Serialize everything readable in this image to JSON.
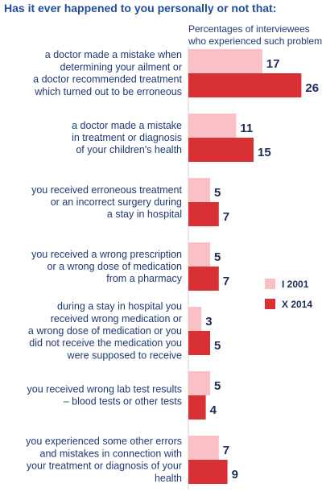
{
  "chart_data": {
    "type": "bar",
    "orientation": "horizontal",
    "title": "Has it ever happened to you personally or not that:",
    "subtitle": [
      "Percentages of interviewees",
      "who experienced such problems"
    ],
    "categories": [
      [
        "a doctor made a mistake when",
        "determining your ailment or",
        "a doctor recommended treatment",
        "which turned out to be erroneous"
      ],
      [
        "a doctor made a mistake",
        "in treatment or diagnosis",
        "of your children's health"
      ],
      [
        "you received erroneous treatment",
        "or an incorrect surgery during",
        "a stay in hospital"
      ],
      [
        "you received a wrong prescription",
        "or a wrong dose of medication",
        "from a pharmacy"
      ],
      [
        "during a stay in hospital you",
        "received wrong medication or",
        "a wrong dose of medication or you",
        "did not receive the medication you",
        "were supposed to receive"
      ],
      [
        "you received wrong lab test results",
        "– blood tests or other tests"
      ],
      [
        "you experienced some other errors",
        "and mistakes in connection with",
        "your treatment or diagnosis of your",
        "health"
      ]
    ],
    "series": [
      {
        "name": "I 2001",
        "color": "#f9c1c6",
        "values": [
          17,
          11,
          5,
          5,
          3,
          5,
          7
        ]
      },
      {
        "name": "X 2014",
        "color": "#d93035",
        "values": [
          26,
          15,
          7,
          7,
          5,
          4,
          9
        ]
      }
    ],
    "legend_position": "right",
    "grid": false
  }
}
